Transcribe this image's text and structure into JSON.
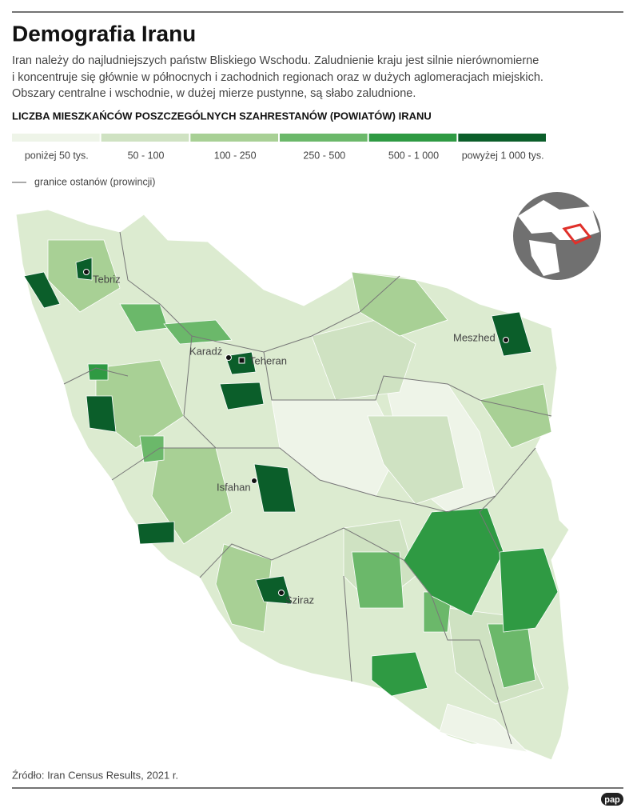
{
  "header": {
    "title": "Demografia Iranu",
    "description": [
      "Iran należy do najludniejszych państw Bliskiego Wschodu. Zaludnienie kraju jest silnie nierównomierne",
      "i koncentruje się głównie w północnych i zachodnich regionach oraz w dużych aglomeracjach miejskich.",
      "Obszary centralne i wschodnie, w dużej mierze pustynne, są słabo zaludnione."
    ]
  },
  "legend": {
    "heading": "LICZBA MIESZKAŃCÓW POSZCZEGÓLNYCH SZAHRESTANÓW (POWIATÓW) IRANU",
    "items": [
      {
        "label": "poniżej 50 tys.",
        "color": "#eef4e8"
      },
      {
        "label": "50 - 100",
        "color": "#cfe2c2"
      },
      {
        "label": "100 - 250",
        "color": "#a8d095"
      },
      {
        "label": "250 - 500",
        "color": "#6bb86a"
      },
      {
        "label": "500 - 1 000",
        "color": "#2f9a43"
      },
      {
        "label": "powyżej 1 000 tys.",
        "color": "#0b5e2a"
      }
    ],
    "boundary": "granice ostanów (prowincji)"
  },
  "map": {
    "cities": [
      "Tebriz",
      "Karadż",
      "Teheran",
      "Meszhed",
      "Isfahan",
      "Sziraz"
    ]
  },
  "footer": {
    "source": "Źródło: Iran Census Results, 2021 r.",
    "logo": "pap"
  }
}
